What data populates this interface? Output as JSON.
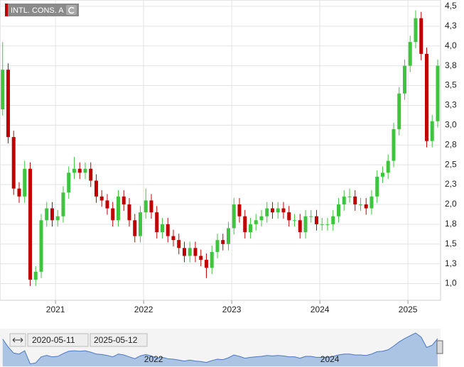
{
  "chart_data": {
    "type": "candlestick",
    "title": "INTL. CONS. A",
    "x": [
      2020.4,
      2020.4625,
      2020.525,
      2020.5875,
      2020.65,
      2020.7125,
      2020.775,
      2020.8375,
      2020.9,
      2020.9625,
      2021.025,
      2021.0875,
      2021.15,
      2021.2125,
      2021.275,
      2021.3375,
      2021.4,
      2021.4625,
      2021.525,
      2021.5875,
      2021.65,
      2021.7125,
      2021.775,
      2021.8375,
      2021.9,
      2021.9625,
      2022.025,
      2022.0875,
      2022.15,
      2022.2125,
      2022.275,
      2022.3375,
      2022.4,
      2022.4625,
      2022.525,
      2022.5875,
      2022.65,
      2022.7125,
      2022.775,
      2022.8375,
      2022.9,
      2022.9625,
      2023.025,
      2023.0875,
      2023.15,
      2023.2125,
      2023.275,
      2023.3375,
      2023.4,
      2023.4625,
      2023.525,
      2023.5875,
      2023.65,
      2023.7125,
      2023.775,
      2023.8375,
      2023.9,
      2023.9625,
      2024.025,
      2024.0875,
      2024.15,
      2024.2125,
      2024.275,
      2024.3375,
      2024.4,
      2024.4625,
      2024.525,
      2024.5875,
      2024.65,
      2024.7125,
      2024.775,
      2024.8375,
      2024.9,
      2024.9625,
      2025.025,
      2025.0875,
      2025.15,
      2025.2125,
      2025.275,
      2025.3375
    ],
    "open": [
      3.2,
      3.7,
      2.85,
      2.2,
      2.1,
      2.45,
      1.05,
      1.15,
      1.8,
      1.95,
      1.8,
      1.85,
      2.15,
      2.4,
      2.45,
      2.4,
      2.45,
      2.3,
      2.1,
      2.05,
      1.95,
      1.8,
      2.1,
      2.0,
      1.8,
      1.6,
      1.9,
      2.05,
      1.9,
      1.65,
      1.75,
      1.6,
      1.55,
      1.45,
      1.35,
      1.45,
      1.35,
      1.3,
      1.2,
      1.4,
      1.55,
      1.5,
      1.7,
      2.0,
      1.85,
      1.65,
      1.75,
      1.8,
      1.85,
      1.95,
      1.9,
      1.95,
      1.9,
      1.8,
      1.8,
      1.65,
      1.85,
      1.85,
      1.75,
      1.75,
      1.75,
      1.85,
      2.0,
      2.1,
      2.1,
      2.0,
      2.0,
      1.95,
      2.1,
      2.35,
      2.4,
      2.55,
      2.95,
      3.4,
      3.75,
      4.05,
      4.35,
      3.9,
      2.8,
      3.05
    ],
    "high": [
      4.05,
      3.78,
      2.93,
      2.28,
      2.55,
      2.53,
      1.22,
      1.88,
      2.03,
      2.03,
      1.93,
      2.23,
      2.48,
      2.6,
      2.53,
      2.53,
      2.53,
      2.38,
      2.18,
      2.13,
      2.03,
      2.18,
      2.18,
      2.08,
      1.88,
      1.98,
      2.2,
      2.13,
      1.98,
      1.83,
      1.83,
      1.68,
      1.63,
      1.53,
      1.53,
      1.53,
      1.43,
      1.38,
      1.48,
      1.63,
      1.63,
      1.78,
      2.08,
      2.08,
      1.93,
      1.83,
      1.88,
      1.93,
      2.03,
      2.03,
      2.03,
      2.03,
      1.98,
      1.88,
      1.88,
      1.93,
      1.93,
      1.93,
      1.83,
      1.83,
      1.93,
      2.08,
      2.18,
      2.2,
      2.18,
      2.08,
      2.08,
      2.18,
      2.43,
      2.48,
      2.63,
      3.03,
      3.48,
      3.83,
      4.13,
      4.45,
      4.43,
      3.98,
      3.13,
      3.83
    ],
    "low": [
      3.12,
      2.77,
      2.12,
      2.02,
      2.02,
      0.97,
      0.97,
      1.07,
      1.72,
      1.72,
      1.72,
      1.77,
      2.07,
      2.32,
      2.32,
      2.32,
      2.22,
      2.02,
      1.97,
      1.87,
      1.72,
      1.72,
      1.92,
      1.72,
      1.52,
      1.52,
      1.82,
      1.82,
      1.57,
      1.57,
      1.52,
      1.47,
      1.37,
      1.27,
      1.27,
      1.27,
      1.22,
      1.07,
      1.12,
      1.32,
      1.42,
      1.42,
      1.62,
      1.77,
      1.57,
      1.57,
      1.67,
      1.72,
      1.77,
      1.82,
      1.82,
      1.82,
      1.72,
      1.72,
      1.57,
      1.57,
      1.77,
      1.67,
      1.67,
      1.67,
      1.67,
      1.77,
      1.92,
      2.02,
      1.92,
      1.92,
      1.87,
      1.87,
      2.02,
      2.27,
      2.32,
      2.47,
      2.87,
      3.32,
      3.67,
      3.97,
      3.82,
      2.72,
      2.72,
      2.97
    ],
    "close": [
      3.7,
      2.85,
      2.2,
      2.1,
      2.45,
      1.05,
      1.15,
      1.8,
      1.95,
      1.8,
      1.85,
      2.15,
      2.4,
      2.45,
      2.4,
      2.45,
      2.3,
      2.1,
      2.05,
      1.95,
      1.8,
      2.1,
      2.0,
      1.8,
      1.6,
      1.9,
      2.05,
      1.9,
      1.65,
      1.75,
      1.6,
      1.55,
      1.45,
      1.35,
      1.45,
      1.35,
      1.3,
      1.2,
      1.4,
      1.55,
      1.5,
      1.7,
      2.0,
      1.85,
      1.65,
      1.75,
      1.8,
      1.85,
      1.95,
      1.9,
      1.95,
      1.9,
      1.8,
      1.8,
      1.65,
      1.85,
      1.85,
      1.75,
      1.75,
      1.75,
      1.85,
      2.0,
      2.1,
      2.1,
      2.0,
      2.0,
      1.95,
      2.1,
      2.35,
      2.4,
      2.55,
      2.95,
      3.4,
      3.75,
      4.05,
      4.35,
      3.9,
      2.8,
      3.05,
      3.75
    ],
    "up_color": "#3fc43f",
    "down_color": "#c00000",
    "xlim": [
      2020.37,
      2025.37
    ],
    "xticks": [
      2021,
      2022,
      2023,
      2024,
      2025
    ],
    "ylim": [
      0.79,
      4.58
    ],
    "yticks": [
      {
        "value": 1.0,
        "label": "1,0"
      },
      {
        "value": 1.25,
        "label": "1,3"
      },
      {
        "value": 1.5,
        "label": "1,5"
      },
      {
        "value": 1.75,
        "label": "1,8"
      },
      {
        "value": 2.0,
        "label": "2,0"
      },
      {
        "value": 2.25,
        "label": "2,3"
      },
      {
        "value": 2.5,
        "label": "2,5"
      },
      {
        "value": 2.75,
        "label": "2,8"
      },
      {
        "value": 3.0,
        "label": "3,0"
      },
      {
        "value": 3.25,
        "label": "3,3"
      },
      {
        "value": 3.5,
        "label": "3,5"
      },
      {
        "value": 3.75,
        "label": "3,8"
      },
      {
        "value": 4.0,
        "label": "4,0"
      },
      {
        "value": 4.25,
        "label": "4,3"
      },
      {
        "value": 4.5,
        "label": "4,5"
      }
    ],
    "grid": true,
    "navigator": {
      "from": "2020-05-11",
      "to": "2025-05-12",
      "xticks": [
        2022,
        2024
      ],
      "color": "#9ab8e0"
    }
  }
}
